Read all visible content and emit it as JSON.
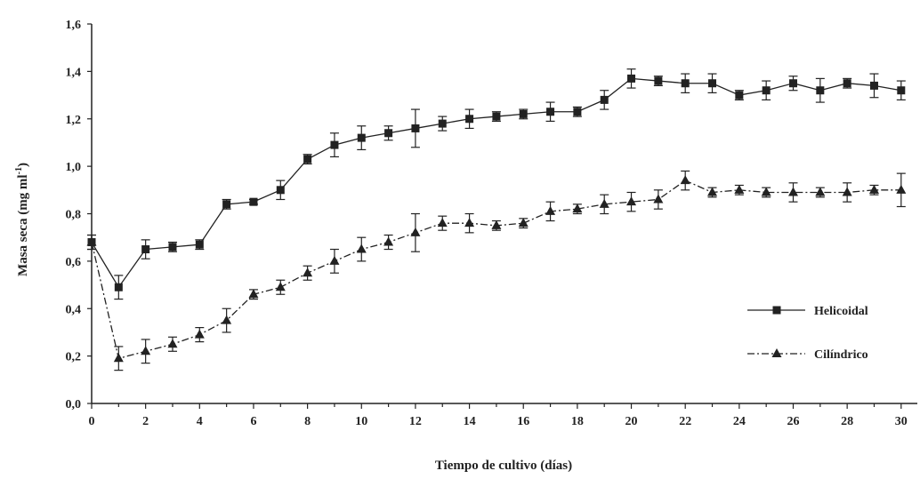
{
  "chart_data": {
    "type": "line",
    "xlabel": "Tiempo de cultivo (días)",
    "ylabel_main": "Masa seca (mg ml",
    "ylabel_sup": "-1",
    "ylabel_close": ")",
    "xlim": [
      0,
      30.6
    ],
    "ylim": [
      0,
      1.6
    ],
    "x_ticks": [
      "0",
      "2",
      "4",
      "6",
      "8",
      "10",
      "12",
      "14",
      "16",
      "18",
      "20",
      "22",
      "24",
      "26",
      "28",
      "30"
    ],
    "y_ticks": [
      "0,0",
      "0,2",
      "0,4",
      "0,6",
      "0,8",
      "1,0",
      "1,2",
      "1,4",
      "1,6"
    ],
    "grid": false,
    "legend_position": "right",
    "series": [
      {
        "name": "Helicoidal",
        "marker": "square",
        "line_style": "solid",
        "color": "#222222",
        "points": [
          {
            "x": 0,
            "y": 0.68,
            "err": 0.03
          },
          {
            "x": 1,
            "y": 0.49,
            "err": 0.05
          },
          {
            "x": 2,
            "y": 0.65,
            "err": 0.04
          },
          {
            "x": 3,
            "y": 0.66,
            "err": 0.02
          },
          {
            "x": 4,
            "y": 0.67,
            "err": 0.02
          },
          {
            "x": 5,
            "y": 0.84,
            "err": 0.02
          },
          {
            "x": 6,
            "y": 0.85,
            "err": 0.01
          },
          {
            "x": 7,
            "y": 0.9,
            "err": 0.04
          },
          {
            "x": 8,
            "y": 1.03,
            "err": 0.02
          },
          {
            "x": 9,
            "y": 1.09,
            "err": 0.05
          },
          {
            "x": 10,
            "y": 1.12,
            "err": 0.05
          },
          {
            "x": 11,
            "y": 1.14,
            "err": 0.03
          },
          {
            "x": 12,
            "y": 1.16,
            "err": 0.08
          },
          {
            "x": 13,
            "y": 1.18,
            "err": 0.03
          },
          {
            "x": 14,
            "y": 1.2,
            "err": 0.04
          },
          {
            "x": 15,
            "y": 1.21,
            "err": 0.02
          },
          {
            "x": 16,
            "y": 1.22,
            "err": 0.02
          },
          {
            "x": 17,
            "y": 1.23,
            "err": 0.04
          },
          {
            "x": 18,
            "y": 1.23,
            "err": 0.02
          },
          {
            "x": 19,
            "y": 1.28,
            "err": 0.04
          },
          {
            "x": 20,
            "y": 1.37,
            "err": 0.04
          },
          {
            "x": 21,
            "y": 1.36,
            "err": 0.02
          },
          {
            "x": 22,
            "y": 1.35,
            "err": 0.04
          },
          {
            "x": 23,
            "y": 1.35,
            "err": 0.04
          },
          {
            "x": 24,
            "y": 1.3,
            "err": 0.02
          },
          {
            "x": 25,
            "y": 1.32,
            "err": 0.04
          },
          {
            "x": 26,
            "y": 1.35,
            "err": 0.03
          },
          {
            "x": 27,
            "y": 1.32,
            "err": 0.05
          },
          {
            "x": 28,
            "y": 1.35,
            "err": 0.02
          },
          {
            "x": 29,
            "y": 1.34,
            "err": 0.05
          },
          {
            "x": 30,
            "y": 1.32,
            "err": 0.04
          }
        ]
      },
      {
        "name": "Cilíndrico",
        "marker": "triangle",
        "line_style": "dashdot",
        "color": "#222222",
        "points": [
          {
            "x": 0,
            "y": 0.68,
            "err": 0.03
          },
          {
            "x": 1,
            "y": 0.19,
            "err": 0.05
          },
          {
            "x": 2,
            "y": 0.22,
            "err": 0.05
          },
          {
            "x": 3,
            "y": 0.25,
            "err": 0.03
          },
          {
            "x": 4,
            "y": 0.29,
            "err": 0.03
          },
          {
            "x": 5,
            "y": 0.35,
            "err": 0.05
          },
          {
            "x": 6,
            "y": 0.46,
            "err": 0.02
          },
          {
            "x": 7,
            "y": 0.49,
            "err": 0.03
          },
          {
            "x": 8,
            "y": 0.55,
            "err": 0.03
          },
          {
            "x": 9,
            "y": 0.6,
            "err": 0.05
          },
          {
            "x": 10,
            "y": 0.65,
            "err": 0.05
          },
          {
            "x": 11,
            "y": 0.68,
            "err": 0.03
          },
          {
            "x": 12,
            "y": 0.72,
            "err": 0.08
          },
          {
            "x": 13,
            "y": 0.76,
            "err": 0.03
          },
          {
            "x": 14,
            "y": 0.76,
            "err": 0.04
          },
          {
            "x": 15,
            "y": 0.75,
            "err": 0.02
          },
          {
            "x": 16,
            "y": 0.76,
            "err": 0.02
          },
          {
            "x": 17,
            "y": 0.81,
            "err": 0.04
          },
          {
            "x": 18,
            "y": 0.82,
            "err": 0.02
          },
          {
            "x": 19,
            "y": 0.84,
            "err": 0.04
          },
          {
            "x": 20,
            "y": 0.85,
            "err": 0.04
          },
          {
            "x": 21,
            "y": 0.86,
            "err": 0.04
          },
          {
            "x": 22,
            "y": 0.94,
            "err": 0.04
          },
          {
            "x": 23,
            "y": 0.89,
            "err": 0.02
          },
          {
            "x": 24,
            "y": 0.9,
            "err": 0.02
          },
          {
            "x": 25,
            "y": 0.89,
            "err": 0.02
          },
          {
            "x": 26,
            "y": 0.89,
            "err": 0.04
          },
          {
            "x": 27,
            "y": 0.89,
            "err": 0.02
          },
          {
            "x": 28,
            "y": 0.89,
            "err": 0.04
          },
          {
            "x": 29,
            "y": 0.9,
            "err": 0.02
          },
          {
            "x": 30,
            "y": 0.9,
            "err": 0.07
          }
        ]
      }
    ]
  }
}
